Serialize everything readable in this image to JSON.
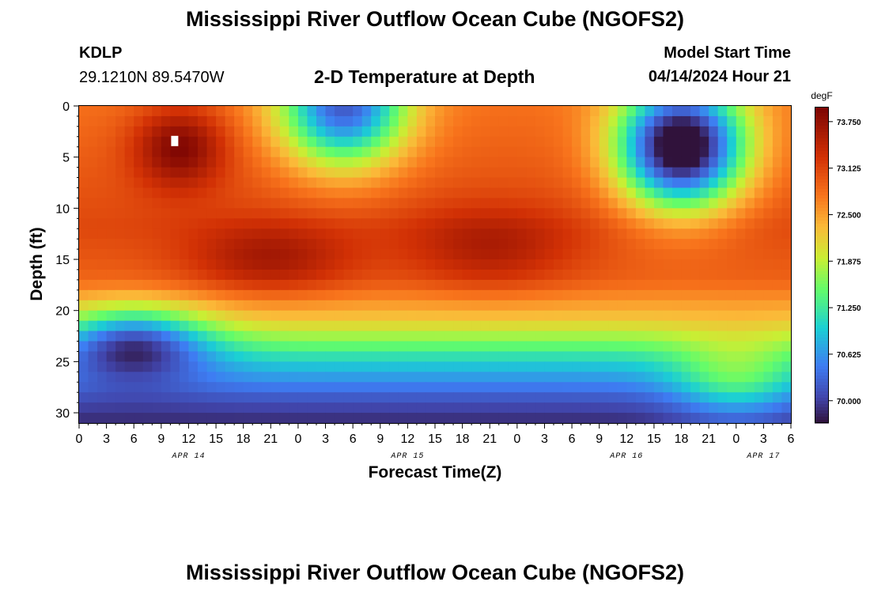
{
  "page": {
    "title_top": "Mississippi River Outflow Ocean Cube (NGOFS2)",
    "title_bottom": "Mississippi River Outflow Ocean Cube (NGOFS2)",
    "station": "KDLP",
    "coords": "29.1210N  89.5470W",
    "subtitle": "2-D Temperature at Depth",
    "model_label": "Model Start Time",
    "model_time": "04/14/2024 Hour 21"
  },
  "chart_data": {
    "type": "heatmap",
    "title": "2-D Temperature at Depth",
    "xlabel": "Forecast Time(Z)",
    "ylabel": "Depth (ft)",
    "x_hours_range": [
      0,
      78
    ],
    "ylim": [
      0,
      31
    ],
    "y_ticks": [
      0,
      5,
      10,
      15,
      20,
      25,
      30
    ],
    "y_tick_labels": [
      "0",
      "5",
      "10",
      "15",
      "20",
      "25",
      "30"
    ],
    "x_ticks_hours": [
      0,
      3,
      6,
      9,
      12,
      15,
      18,
      21,
      24,
      27,
      30,
      33,
      36,
      39,
      42,
      45,
      48,
      51,
      54,
      57,
      60,
      63,
      66,
      69,
      72,
      75,
      78
    ],
    "x_tick_labels": [
      "0",
      "3",
      "6",
      "9",
      "12",
      "15",
      "18",
      "21",
      "0",
      "3",
      "6",
      "9",
      "12",
      "15",
      "18",
      "21",
      "0",
      "3",
      "6",
      "9",
      "12",
      "15",
      "18",
      "21",
      "0",
      "3",
      "6"
    ],
    "date_labels": [
      {
        "text": "APR 14",
        "hour": 12
      },
      {
        "text": "APR 15",
        "hour": 36
      },
      {
        "text": "APR 16",
        "hour": 60
      },
      {
        "text": "APR 17",
        "hour": 75
      }
    ],
    "colorbar": {
      "unit": "degF",
      "min": 69.7,
      "max": 73.95,
      "ticks": [
        73.75,
        73.125,
        72.5,
        71.875,
        71.25,
        70.625,
        70.0
      ],
      "tick_labels": [
        "73.750",
        "73.125",
        "72.500",
        "71.875",
        "71.250",
        "70.625",
        "70.000"
      ]
    },
    "grid": {
      "cols": 78,
      "rows": 31,
      "base_profile": [
        {
          "d": 0,
          "t": 72.8
        },
        {
          "d": 12,
          "t": 73.1
        },
        {
          "d": 17,
          "t": 72.9
        },
        {
          "d": 21,
          "t": 72.2
        },
        {
          "d": 25,
          "t": 71.0
        },
        {
          "d": 29,
          "t": 70.1
        },
        {
          "d": 31,
          "t": 69.85
        }
      ],
      "features": [
        {
          "h": 11,
          "d": 4,
          "sh": 5,
          "sd": 4,
          "a": 1.0
        },
        {
          "h": 21,
          "d": 15,
          "sh": 9,
          "sd": 3.5,
          "a": 0.65
        },
        {
          "h": 45,
          "d": 14,
          "sh": 9,
          "sd": 4,
          "a": 0.55
        },
        {
          "h": 29,
          "d": 0,
          "sh": 7,
          "sd": 6,
          "a": -2.6
        },
        {
          "h": 66,
          "d": 4,
          "sh": 7,
          "sd": 6,
          "a": -3.6
        },
        {
          "h": 6,
          "d": 23,
          "sh": 8,
          "sd": 3.5,
          "a": -1.6
        },
        {
          "h": 72,
          "d": 27,
          "sh": 7,
          "sd": 4,
          "a": 0.9
        }
      ]
    },
    "marker": {
      "hour": 10,
      "depth": 3
    }
  }
}
